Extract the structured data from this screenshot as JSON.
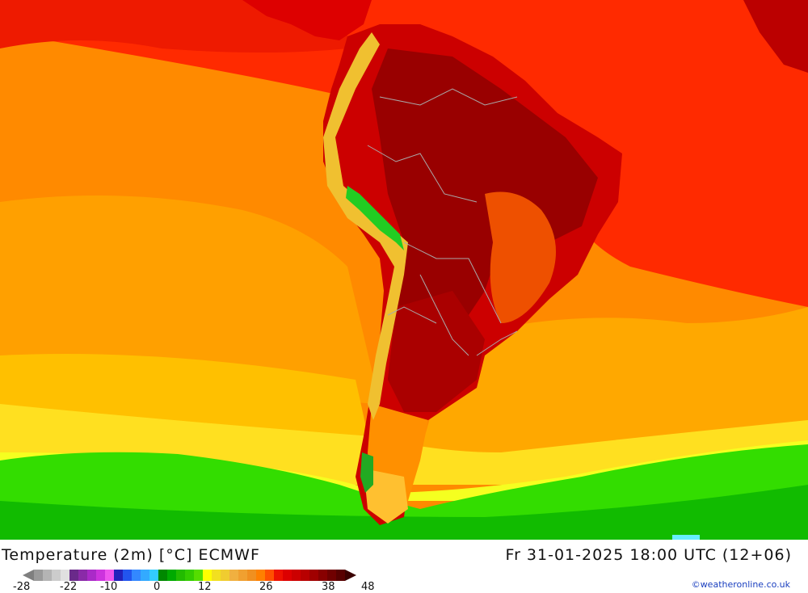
{
  "map": {
    "region": "South America",
    "colors": {
      "ocean_north": "#ff2a00",
      "ocean_mid": "#ff8a00",
      "ocean_subtropic": "#ffb000",
      "ocean_south": "#ffd400",
      "ocean_yellow": "#f5ff20",
      "ocean_green": "#22dd00",
      "land_hot": "#cc0000",
      "land_very_hot": "#990000",
      "andes_cool": "#f0d040",
      "andes_cold": "#22cc22",
      "border": "#aaaaaa"
    }
  },
  "footer": {
    "title": "Temperature (2m) [°C] ECMWF",
    "datetime": "Fr 31-01-2025 18:00 UTC (12+06)",
    "credit": "©weatheronline.co.uk",
    "colorbar_colors": [
      "#9a9a9a",
      "#b4b4b4",
      "#cccccc",
      "#e0e0e0",
      "#6a2a8a",
      "#8a2aa8",
      "#aa2ac8",
      "#cc33dd",
      "#ee55ee",
      "#2222bb",
      "#2255ee",
      "#3388ff",
      "#33aaff",
      "#33ccff",
      "#008800",
      "#00aa00",
      "#22bb00",
      "#33cc00",
      "#55dd00",
      "#ffff00",
      "#f2e020",
      "#f0cc30",
      "#f0b040",
      "#f0a030",
      "#f09020",
      "#ff8000",
      "#ff5000",
      "#ee1100",
      "#dd0000",
      "#cc0000",
      "#b80000",
      "#a00000",
      "#880000",
      "#700000",
      "#580000"
    ],
    "ticks": [
      "-28",
      "-22",
      "-10",
      "0",
      "12",
      "26",
      "38",
      "48"
    ]
  }
}
